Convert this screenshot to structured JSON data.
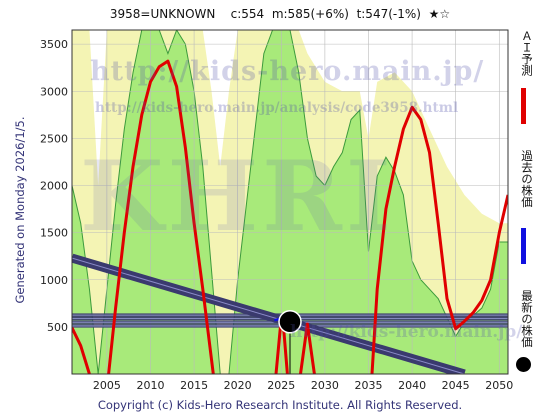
{
  "header": {
    "code": "3958=UNKNOWN",
    "close": "c:554",
    "mean": "m:585(+6%)",
    "target": "t:547(-1%)",
    "stars": "★☆"
  },
  "generated_text": "Generated on Monday 2026/1/5.",
  "copyright": "Copyright (c) Kids-Hero Research Institute. All Rights Reserved.",
  "watermark": {
    "url_large": "http://kids-hero.main.jp/",
    "url_small": "http://kids-hero.main.jp/analysis/code3958.html",
    "big": "KHRI",
    "url_bottom": "http://kids-hero.main.jp/"
  },
  "legend": {
    "forecast": "ＡＩ予測",
    "past": "過去の株価",
    "latest": "最新の株価"
  },
  "colors": {
    "forecast": "#e00000",
    "past": "#1010e0",
    "latest": "#000000",
    "trend_band": "#3a3a6e",
    "green_area": "#a8ea7a",
    "yellow_area": "#f4f4b4",
    "grid": "#bbbbbb",
    "bg": "#ffffff"
  },
  "chart_data": {
    "type": "line",
    "xlim": [
      2001,
      2051
    ],
    "ylim": [
      0,
      3650
    ],
    "x_ticks": [
      2005,
      2010,
      2015,
      2020,
      2025,
      2030,
      2035,
      2040,
      2045,
      2050
    ],
    "y_ticks": [
      500,
      1000,
      1500,
      2000,
      2500,
      3000,
      3500
    ],
    "grid": true,
    "latest_point": {
      "x": 2026.0,
      "y": 554
    },
    "horizontal_bands": [
      510,
      550,
      590,
      625
    ],
    "trend_line": [
      [
        2001,
        1230
      ],
      [
        2046,
        0
      ]
    ],
    "series": [
      {
        "name": "ＡＩ予測",
        "color": "#e00000",
        "segments": [
          [
            [
              2001,
              490
            ],
            [
              2002,
              300
            ],
            [
              2003,
              0
            ]
          ],
          [
            [
              2005.2,
              0
            ],
            [
              2006,
              700
            ],
            [
              2007,
              1500
            ],
            [
              2008,
              2200
            ],
            [
              2009,
              2750
            ],
            [
              2010,
              3100
            ],
            [
              2011,
              3260
            ],
            [
              2012,
              3320
            ],
            [
              2013,
              3050
            ],
            [
              2014,
              2400
            ],
            [
              2015,
              1600
            ],
            [
              2016,
              900
            ],
            [
              2017.2,
              0
            ]
          ],
          [
            [
              2024.4,
              0
            ],
            [
              2025,
              600
            ],
            [
              2025.3,
              450
            ],
            [
              2025.7,
              0
            ]
          ],
          [
            [
              2027.2,
              0
            ],
            [
              2028,
              530
            ],
            [
              2028.8,
              0
            ]
          ],
          [
            [
              2035.4,
              0
            ],
            [
              2036,
              900
            ],
            [
              2037,
              1750
            ],
            [
              2038,
              2200
            ],
            [
              2039,
              2600
            ],
            [
              2040,
              2830
            ],
            [
              2041,
              2700
            ],
            [
              2042,
              2350
            ],
            [
              2043,
              1600
            ],
            [
              2044,
              800
            ],
            [
              2045,
              480
            ],
            [
              2046,
              560
            ],
            [
              2047,
              650
            ],
            [
              2048,
              780
            ],
            [
              2049,
              1000
            ],
            [
              2050,
              1500
            ],
            [
              2051,
              1900
            ]
          ]
        ]
      },
      {
        "name": "過去の株価",
        "color": "#1010e0",
        "segments": [
          [
            [
              2024.2,
              570
            ],
            [
              2025,
              590
            ],
            [
              2026,
              554
            ]
          ]
        ]
      }
    ],
    "green_area": [
      [
        2001,
        2000
      ],
      [
        2002,
        1600
      ],
      [
        2003,
        900
      ],
      [
        2004,
        0
      ],
      [
        2005,
        900
      ],
      [
        2006,
        1800
      ],
      [
        2007,
        2600
      ],
      [
        2008,
        3200
      ],
      [
        2009,
        3650
      ],
      [
        2011,
        3650
      ],
      [
        2012,
        3400
      ],
      [
        2013,
        3650
      ],
      [
        2014,
        3500
      ],
      [
        2015,
        3000
      ],
      [
        2016,
        2200
      ],
      [
        2017,
        1100
      ],
      [
        2018,
        0
      ],
      [
        2019,
        0
      ],
      [
        2020,
        1000
      ],
      [
        2021,
        1800
      ],
      [
        2022,
        2600
      ],
      [
        2023,
        3400
      ],
      [
        2024,
        3650
      ],
      [
        2026,
        3650
      ],
      [
        2027,
        3200
      ],
      [
        2028,
        2500
      ],
      [
        2029,
        2100
      ],
      [
        2030,
        2000
      ],
      [
        2031,
        2200
      ],
      [
        2032,
        2350
      ],
      [
        2033,
        2700
      ],
      [
        2034,
        2800
      ],
      [
        2035,
        1300
      ],
      [
        2036,
        2100
      ],
      [
        2037,
        2300
      ],
      [
        2038,
        2150
      ],
      [
        2039,
        1900
      ],
      [
        2040,
        1200
      ],
      [
        2041,
        1000
      ],
      [
        2042,
        900
      ],
      [
        2043,
        800
      ],
      [
        2044,
        600
      ],
      [
        2045,
        400
      ],
      [
        2046,
        550
      ],
      [
        2047,
        620
      ],
      [
        2048,
        700
      ],
      [
        2049,
        900
      ],
      [
        2050,
        1400
      ],
      [
        2051,
        1400
      ]
    ],
    "yellow_area": [
      [
        2001,
        3650
      ],
      [
        2003,
        3650
      ],
      [
        2004,
        2000
      ],
      [
        2005,
        3650
      ],
      [
        2016,
        3650
      ],
      [
        2017,
        3000
      ],
      [
        2018,
        2200
      ],
      [
        2019,
        3000
      ],
      [
        2020,
        3650
      ],
      [
        2027,
        3650
      ],
      [
        2028,
        3400
      ],
      [
        2030,
        3100
      ],
      [
        2032,
        3000
      ],
      [
        2034,
        3000
      ],
      [
        2035,
        2500
      ],
      [
        2036,
        3100
      ],
      [
        2038,
        3200
      ],
      [
        2040,
        3000
      ],
      [
        2042,
        2600
      ],
      [
        2044,
        2200
      ],
      [
        2046,
        1900
      ],
      [
        2048,
        1700
      ],
      [
        2050,
        1600
      ],
      [
        2051,
        1600
      ]
    ]
  }
}
